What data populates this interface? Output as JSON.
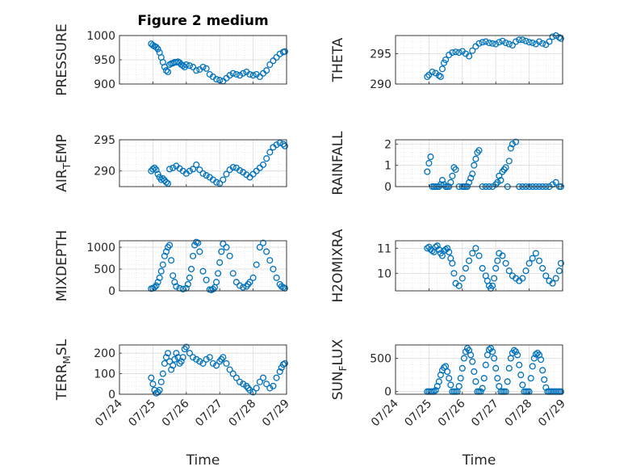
{
  "figure": {
    "title": "Figure 2 medium",
    "marker_color": "#0072BD",
    "axis_color": "#262626",
    "grid_color": "#dcdcdc"
  },
  "chart_data": [
    {
      "type": "scatter",
      "ylabel": "PRESSURE",
      "title": "Figure 2 medium",
      "ylim": [
        900,
        1000
      ],
      "yticks": [
        "900",
        "950",
        "1000"
      ],
      "xlim": [
        "07/24",
        "07/29"
      ],
      "xticks": [],
      "grid": true,
      "x": [
        0.95,
        1.0,
        1.05,
        1.1,
        1.15,
        1.2,
        1.25,
        1.3,
        1.35,
        1.4,
        1.45,
        1.5,
        1.55,
        1.6,
        1.65,
        1.7,
        1.75,
        1.8,
        1.85,
        1.9,
        1.95,
        2.0,
        2.1,
        2.2,
        2.3,
        2.4,
        2.5,
        2.6,
        2.7,
        2.8,
        2.9,
        3.0,
        3.1,
        3.2,
        3.3,
        3.4,
        3.5,
        3.6,
        3.7,
        3.8,
        3.9,
        4.0,
        4.1,
        4.2,
        4.3,
        4.4,
        4.5,
        4.6,
        4.7,
        4.8,
        4.9,
        4.95
      ],
      "y": [
        983,
        980,
        978,
        976,
        972,
        965,
        955,
        945,
        935,
        928,
        925,
        940,
        942,
        943,
        945,
        945,
        946,
        944,
        940,
        938,
        935,
        940,
        938,
        935,
        928,
        930,
        935,
        932,
        920,
        915,
        910,
        908,
        906,
        912,
        918,
        922,
        920,
        918,
        922,
        925,
        920,
        918,
        920,
        915,
        922,
        928,
        940,
        948,
        955,
        962,
        966,
        967
      ]
    },
    {
      "type": "scatter",
      "ylabel": "THETA",
      "ylim": [
        290,
        298
      ],
      "yticks": [
        "290",
        "295"
      ],
      "xlim": [
        "07/24",
        "07/29"
      ],
      "xticks": [],
      "grid": true,
      "x": [
        0.95,
        1.0,
        1.1,
        1.2,
        1.3,
        1.35,
        1.4,
        1.45,
        1.5,
        1.6,
        1.7,
        1.8,
        1.9,
        2.0,
        2.1,
        2.2,
        2.3,
        2.4,
        2.5,
        2.6,
        2.7,
        2.8,
        2.9,
        3.0,
        3.1,
        3.2,
        3.3,
        3.4,
        3.5,
        3.6,
        3.7,
        3.8,
        3.9,
        4.0,
        4.1,
        4.2,
        4.3,
        4.4,
        4.5,
        4.6,
        4.7,
        4.8,
        4.9,
        4.95
      ],
      "y": [
        291.2,
        291.5,
        292.0,
        291.8,
        291.4,
        291.2,
        292.5,
        293.5,
        294.0,
        294.8,
        295.2,
        295.3,
        295.2,
        295.4,
        295.0,
        294.6,
        295.5,
        296.2,
        296.7,
        296.9,
        297.0,
        296.8,
        296.7,
        296.6,
        296.9,
        297.1,
        296.8,
        296.6,
        296.4,
        297.0,
        297.3,
        297.3,
        297.1,
        296.9,
        296.8,
        296.6,
        297.0,
        296.7,
        296.5,
        297.0,
        297.8,
        298.0,
        297.7,
        297.5
      ]
    },
    {
      "type": "scatter",
      "ylabel": "AIR_TEMP",
      "ylim": [
        287.5,
        295
      ],
      "yticks": [
        "290",
        "295"
      ],
      "xlim": [
        "07/24",
        "07/29"
      ],
      "xticks": [],
      "grid": true,
      "x": [
        0.95,
        1.0,
        1.05,
        1.1,
        1.15,
        1.2,
        1.25,
        1.3,
        1.35,
        1.4,
        1.45,
        1.5,
        1.6,
        1.7,
        1.8,
        1.9,
        2.0,
        2.1,
        2.2,
        2.3,
        2.4,
        2.5,
        2.6,
        2.7,
        2.8,
        2.9,
        3.0,
        3.1,
        3.2,
        3.3,
        3.4,
        3.5,
        3.6,
        3.7,
        3.8,
        3.9,
        4.0,
        4.1,
        4.2,
        4.3,
        4.4,
        4.5,
        4.6,
        4.7,
        4.8,
        4.9,
        4.95
      ],
      "y": [
        290.0,
        290.3,
        290.5,
        290.2,
        289.5,
        289.0,
        288.6,
        288.8,
        288.5,
        288.2,
        288.0,
        290.3,
        290.5,
        290.8,
        290.4,
        290.0,
        289.6,
        290.0,
        290.3,
        291.0,
        290.2,
        289.6,
        289.3,
        289.0,
        288.6,
        288.2,
        288.0,
        288.6,
        289.5,
        290.2,
        290.6,
        290.5,
        290.1,
        289.8,
        289.4,
        289.0,
        289.5,
        290.0,
        290.5,
        291.0,
        292.0,
        293.0,
        293.8,
        294.2,
        294.5,
        294.3,
        294.0
      ]
    },
    {
      "type": "scatter",
      "ylabel": "RAINFALL",
      "ylim": [
        0,
        2.2
      ],
      "yticks": [
        "0",
        "1",
        "2"
      ],
      "xlim": [
        "07/24",
        "07/29"
      ],
      "xticks": [],
      "grid": true,
      "x": [
        0.95,
        1.0,
        1.05,
        1.1,
        1.15,
        1.2,
        1.25,
        1.3,
        1.35,
        1.4,
        1.45,
        1.5,
        1.55,
        1.6,
        1.65,
        1.7,
        1.75,
        1.8,
        1.9,
        2.0,
        2.05,
        2.1,
        2.15,
        2.2,
        2.25,
        2.3,
        2.35,
        2.4,
        2.45,
        2.5,
        2.6,
        2.7,
        2.8,
        2.9,
        3.0,
        3.05,
        3.1,
        3.15,
        3.2,
        3.25,
        3.3,
        3.35,
        3.4,
        3.45,
        3.5,
        3.6,
        3.7,
        3.8,
        3.9,
        4.0,
        4.1,
        4.2,
        4.3,
        4.4,
        4.5,
        4.6,
        4.7,
        4.8,
        4.9,
        4.95
      ],
      "y": [
        0.7,
        1.1,
        1.4,
        0.0,
        0.0,
        0.0,
        0.0,
        0.0,
        0.1,
        0.3,
        0.1,
        0.0,
        0.0,
        0.0,
        0.2,
        0.5,
        0.9,
        0.8,
        0.0,
        0.0,
        0.0,
        0.0,
        0.0,
        0.2,
        0.4,
        0.6,
        1.0,
        1.3,
        1.6,
        1.7,
        0.0,
        0.0,
        0.0,
        0.0,
        0.1,
        0.2,
        0.5,
        0.3,
        0.7,
        0.8,
        0.9,
        0.0,
        1.2,
        1.8,
        2.0,
        2.1,
        0.0,
        0.0,
        0.0,
        0.0,
        0.0,
        0.0,
        0.0,
        0.0,
        0.0,
        0.0,
        0.1,
        0.2,
        0.0,
        0.0
      ]
    },
    {
      "type": "scatter",
      "ylabel": "MIXDEPTH",
      "ylim": [
        0,
        1150
      ],
      "yticks": [
        "0",
        "500",
        "1000"
      ],
      "xlim": [
        "07/24",
        "07/29"
      ],
      "xticks": [],
      "grid": true,
      "x": [
        0.95,
        1.0,
        1.05,
        1.1,
        1.15,
        1.2,
        1.25,
        1.3,
        1.35,
        1.4,
        1.45,
        1.5,
        1.55,
        1.6,
        1.65,
        1.7,
        1.8,
        1.9,
        2.0,
        2.05,
        2.1,
        2.15,
        2.2,
        2.25,
        2.3,
        2.35,
        2.4,
        2.5,
        2.6,
        2.7,
        2.75,
        2.8,
        2.85,
        2.9,
        2.95,
        3.0,
        3.05,
        3.1,
        3.2,
        3.3,
        3.4,
        3.5,
        3.6,
        3.7,
        3.8,
        3.85,
        3.9,
        4.0,
        4.1,
        4.2,
        4.3,
        4.4,
        4.5,
        4.6,
        4.7,
        4.8,
        4.85,
        4.9,
        4.95
      ],
      "y": [
        50,
        60,
        80,
        120,
        200,
        300,
        450,
        600,
        800,
        900,
        1000,
        1050,
        700,
        350,
        200,
        100,
        60,
        40,
        60,
        150,
        300,
        500,
        800,
        1050,
        1120,
        1100,
        900,
        450,
        250,
        30,
        20,
        40,
        80,
        200,
        400,
        650,
        900,
        1080,
        1000,
        800,
        400,
        200,
        120,
        80,
        100,
        150,
        200,
        300,
        600,
        1000,
        1100,
        900,
        700,
        500,
        300,
        150,
        100,
        80,
        60
      ]
    },
    {
      "type": "scatter",
      "ylabel": "H2OMIXRA",
      "ylim": [
        9.3,
        11.3
      ],
      "yticks": [
        "10",
        "11"
      ],
      "xlim": [
        "07/24",
        "07/29"
      ],
      "xticks": [],
      "grid": true,
      "x": [
        0.95,
        1.0,
        1.05,
        1.1,
        1.15,
        1.2,
        1.25,
        1.3,
        1.35,
        1.4,
        1.45,
        1.5,
        1.55,
        1.6,
        1.65,
        1.7,
        1.75,
        1.8,
        1.9,
        2.0,
        2.1,
        2.2,
        2.3,
        2.4,
        2.5,
        2.6,
        2.7,
        2.75,
        2.8,
        2.85,
        2.9,
        2.95,
        3.0,
        3.05,
        3.1,
        3.2,
        3.3,
        3.4,
        3.5,
        3.6,
        3.7,
        3.8,
        3.9,
        4.0,
        4.1,
        4.2,
        4.3,
        4.4,
        4.5,
        4.6,
        4.7,
        4.8,
        4.9,
        4.95
      ],
      "y": [
        11.0,
        11.05,
        10.95,
        10.9,
        10.85,
        11.05,
        11.1,
        10.95,
        10.8,
        10.7,
        10.9,
        10.95,
        11.0,
        10.85,
        10.6,
        10.4,
        10.0,
        9.6,
        9.5,
        9.8,
        10.2,
        10.5,
        10.8,
        11.0,
        10.7,
        10.2,
        9.9,
        9.7,
        9.5,
        9.4,
        9.5,
        9.8,
        10.2,
        10.5,
        10.8,
        10.7,
        10.4,
        10.1,
        9.9,
        9.8,
        9.7,
        9.8,
        10.1,
        10.4,
        10.6,
        10.8,
        10.5,
        10.2,
        9.9,
        9.7,
        9.6,
        9.8,
        10.1,
        10.4
      ]
    },
    {
      "type": "scatter",
      "ylabel": "TERR_MSL",
      "ylim": [
        0,
        240
      ],
      "yticks": [
        "0",
        "100",
        "200"
      ],
      "xlim": [
        "07/24",
        "07/29"
      ],
      "xticks": [
        "07/24",
        "07/25",
        "07/26",
        "07/27",
        "07/28",
        "07/29"
      ],
      "xlabel": "Time",
      "grid": true,
      "x": [
        0.95,
        1.0,
        1.05,
        1.1,
        1.15,
        1.2,
        1.25,
        1.3,
        1.35,
        1.4,
        1.45,
        1.5,
        1.55,
        1.6,
        1.65,
        1.7,
        1.75,
        1.8,
        1.85,
        1.9,
        1.95,
        2.0,
        2.1,
        2.2,
        2.3,
        2.4,
        2.5,
        2.6,
        2.7,
        2.8,
        2.9,
        3.0,
        3.05,
        3.1,
        3.2,
        3.3,
        3.4,
        3.5,
        3.6,
        3.7,
        3.8,
        3.85,
        3.9,
        4.0,
        4.1,
        4.2,
        4.3,
        4.4,
        4.5,
        4.6,
        4.7,
        4.8,
        4.85,
        4.9,
        4.95
      ],
      "y": [
        80,
        50,
        20,
        5,
        10,
        20,
        60,
        100,
        150,
        180,
        200,
        160,
        120,
        140,
        170,
        200,
        180,
        150,
        160,
        180,
        220,
        230,
        200,
        180,
        170,
        160,
        150,
        170,
        180,
        150,
        140,
        160,
        170,
        180,
        150,
        120,
        100,
        80,
        60,
        50,
        40,
        30,
        20,
        10,
        30,
        60,
        80,
        50,
        30,
        40,
        80,
        110,
        130,
        145,
        150
      ]
    },
    {
      "type": "scatter",
      "ylabel": "SUN_FLUX",
      "ylim": [
        -40,
        700
      ],
      "yticks": [
        "0",
        "500"
      ],
      "xlim": [
        "07/24",
        "07/29"
      ],
      "xticks": [
        "07/24",
        "07/25",
        "07/26",
        "07/27",
        "07/28",
        "07/29"
      ],
      "xlabel": "Time",
      "grid": true,
      "x": [
        0.95,
        1.0,
        1.05,
        1.1,
        1.15,
        1.2,
        1.25,
        1.3,
        1.35,
        1.4,
        1.45,
        1.5,
        1.55,
        1.6,
        1.65,
        1.7,
        1.75,
        1.8,
        1.85,
        1.9,
        1.95,
        2.0,
        2.05,
        2.1,
        2.15,
        2.2,
        2.25,
        2.3,
        2.35,
        2.4,
        2.45,
        2.5,
        2.55,
        2.6,
        2.65,
        2.7,
        2.75,
        2.8,
        2.85,
        2.9,
        2.95,
        3.0,
        3.05,
        3.1,
        3.15,
        3.2,
        3.25,
        3.3,
        3.35,
        3.4,
        3.45,
        3.5,
        3.55,
        3.6,
        3.65,
        3.7,
        3.75,
        3.8,
        3.85,
        3.9,
        3.95,
        4.0,
        4.05,
        4.1,
        4.15,
        4.2,
        4.25,
        4.3,
        4.35,
        4.4,
        4.45,
        4.5,
        4.55,
        4.6,
        4.65,
        4.7,
        4.75,
        4.8,
        4.85,
        4.9,
        4.95
      ],
      "y": [
        0,
        0,
        0,
        0,
        0,
        20,
        80,
        150,
        250,
        320,
        360,
        380,
        300,
        200,
        100,
        0,
        0,
        0,
        0,
        80,
        200,
        350,
        500,
        600,
        650,
        620,
        550,
        450,
        300,
        150,
        0,
        0,
        0,
        50,
        200,
        400,
        550,
        630,
        650,
        600,
        500,
        350,
        200,
        80,
        0,
        0,
        0,
        0,
        150,
        350,
        500,
        580,
        620,
        600,
        550,
        400,
        250,
        100,
        0,
        0,
        0,
        0,
        200,
        380,
        500,
        560,
        580,
        550,
        480,
        320,
        180,
        60,
        0,
        0,
        0,
        0,
        0,
        0,
        0,
        0,
        0
      ]
    }
  ]
}
